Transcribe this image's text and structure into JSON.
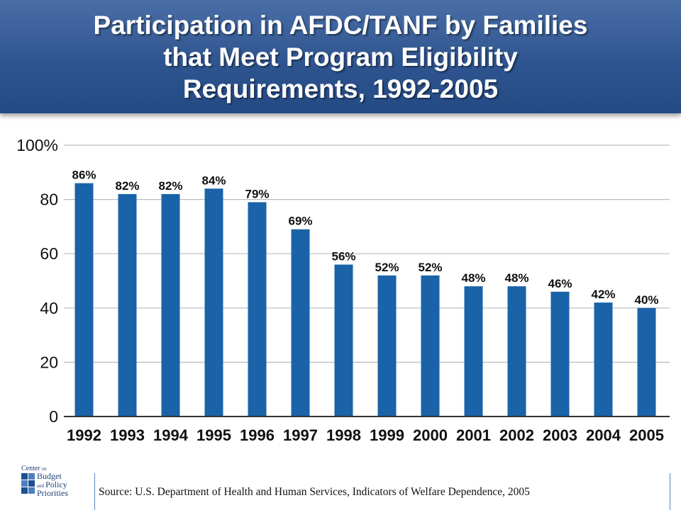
{
  "title_lines": [
    "Participation in AFDC/TANF by Families",
    "that Meet Program Eligibility",
    "Requirements, 1992-2005"
  ],
  "chart_data": {
    "type": "bar",
    "title": "Participation in AFDC/TANF by Families that Meet Program Eligibility Requirements, 1992-2005",
    "categories": [
      "1992",
      "1993",
      "1994",
      "1995",
      "1996",
      "1997",
      "1998",
      "1999",
      "2000",
      "2001",
      "2002",
      "2003",
      "2004",
      "2005"
    ],
    "values": [
      86,
      82,
      82,
      84,
      79,
      69,
      56,
      52,
      52,
      48,
      48,
      46,
      42,
      40
    ],
    "value_labels": [
      "86%",
      "82%",
      "82%",
      "84%",
      "79%",
      "69%",
      "56%",
      "52%",
      "52%",
      "48%",
      "48%",
      "46%",
      "42%",
      "40%"
    ],
    "yticks": [
      0,
      20,
      40,
      60,
      80,
      100
    ],
    "ytick_labels": [
      "0",
      "20",
      "40",
      "60",
      "80",
      "100%"
    ],
    "ylim": [
      0,
      100
    ],
    "xlabel": "",
    "ylabel": "",
    "grid": true,
    "bar_color": "#1a63a8"
  },
  "logo": {
    "line1": "Center",
    "line1_small": "on",
    "line2": "Budget",
    "line3_small": "and",
    "line3": "Policy",
    "line4": "Priorities"
  },
  "source": "Source: U.S. Department of Health and Human Services, Indicators of Welfare Dependence, 2005"
}
